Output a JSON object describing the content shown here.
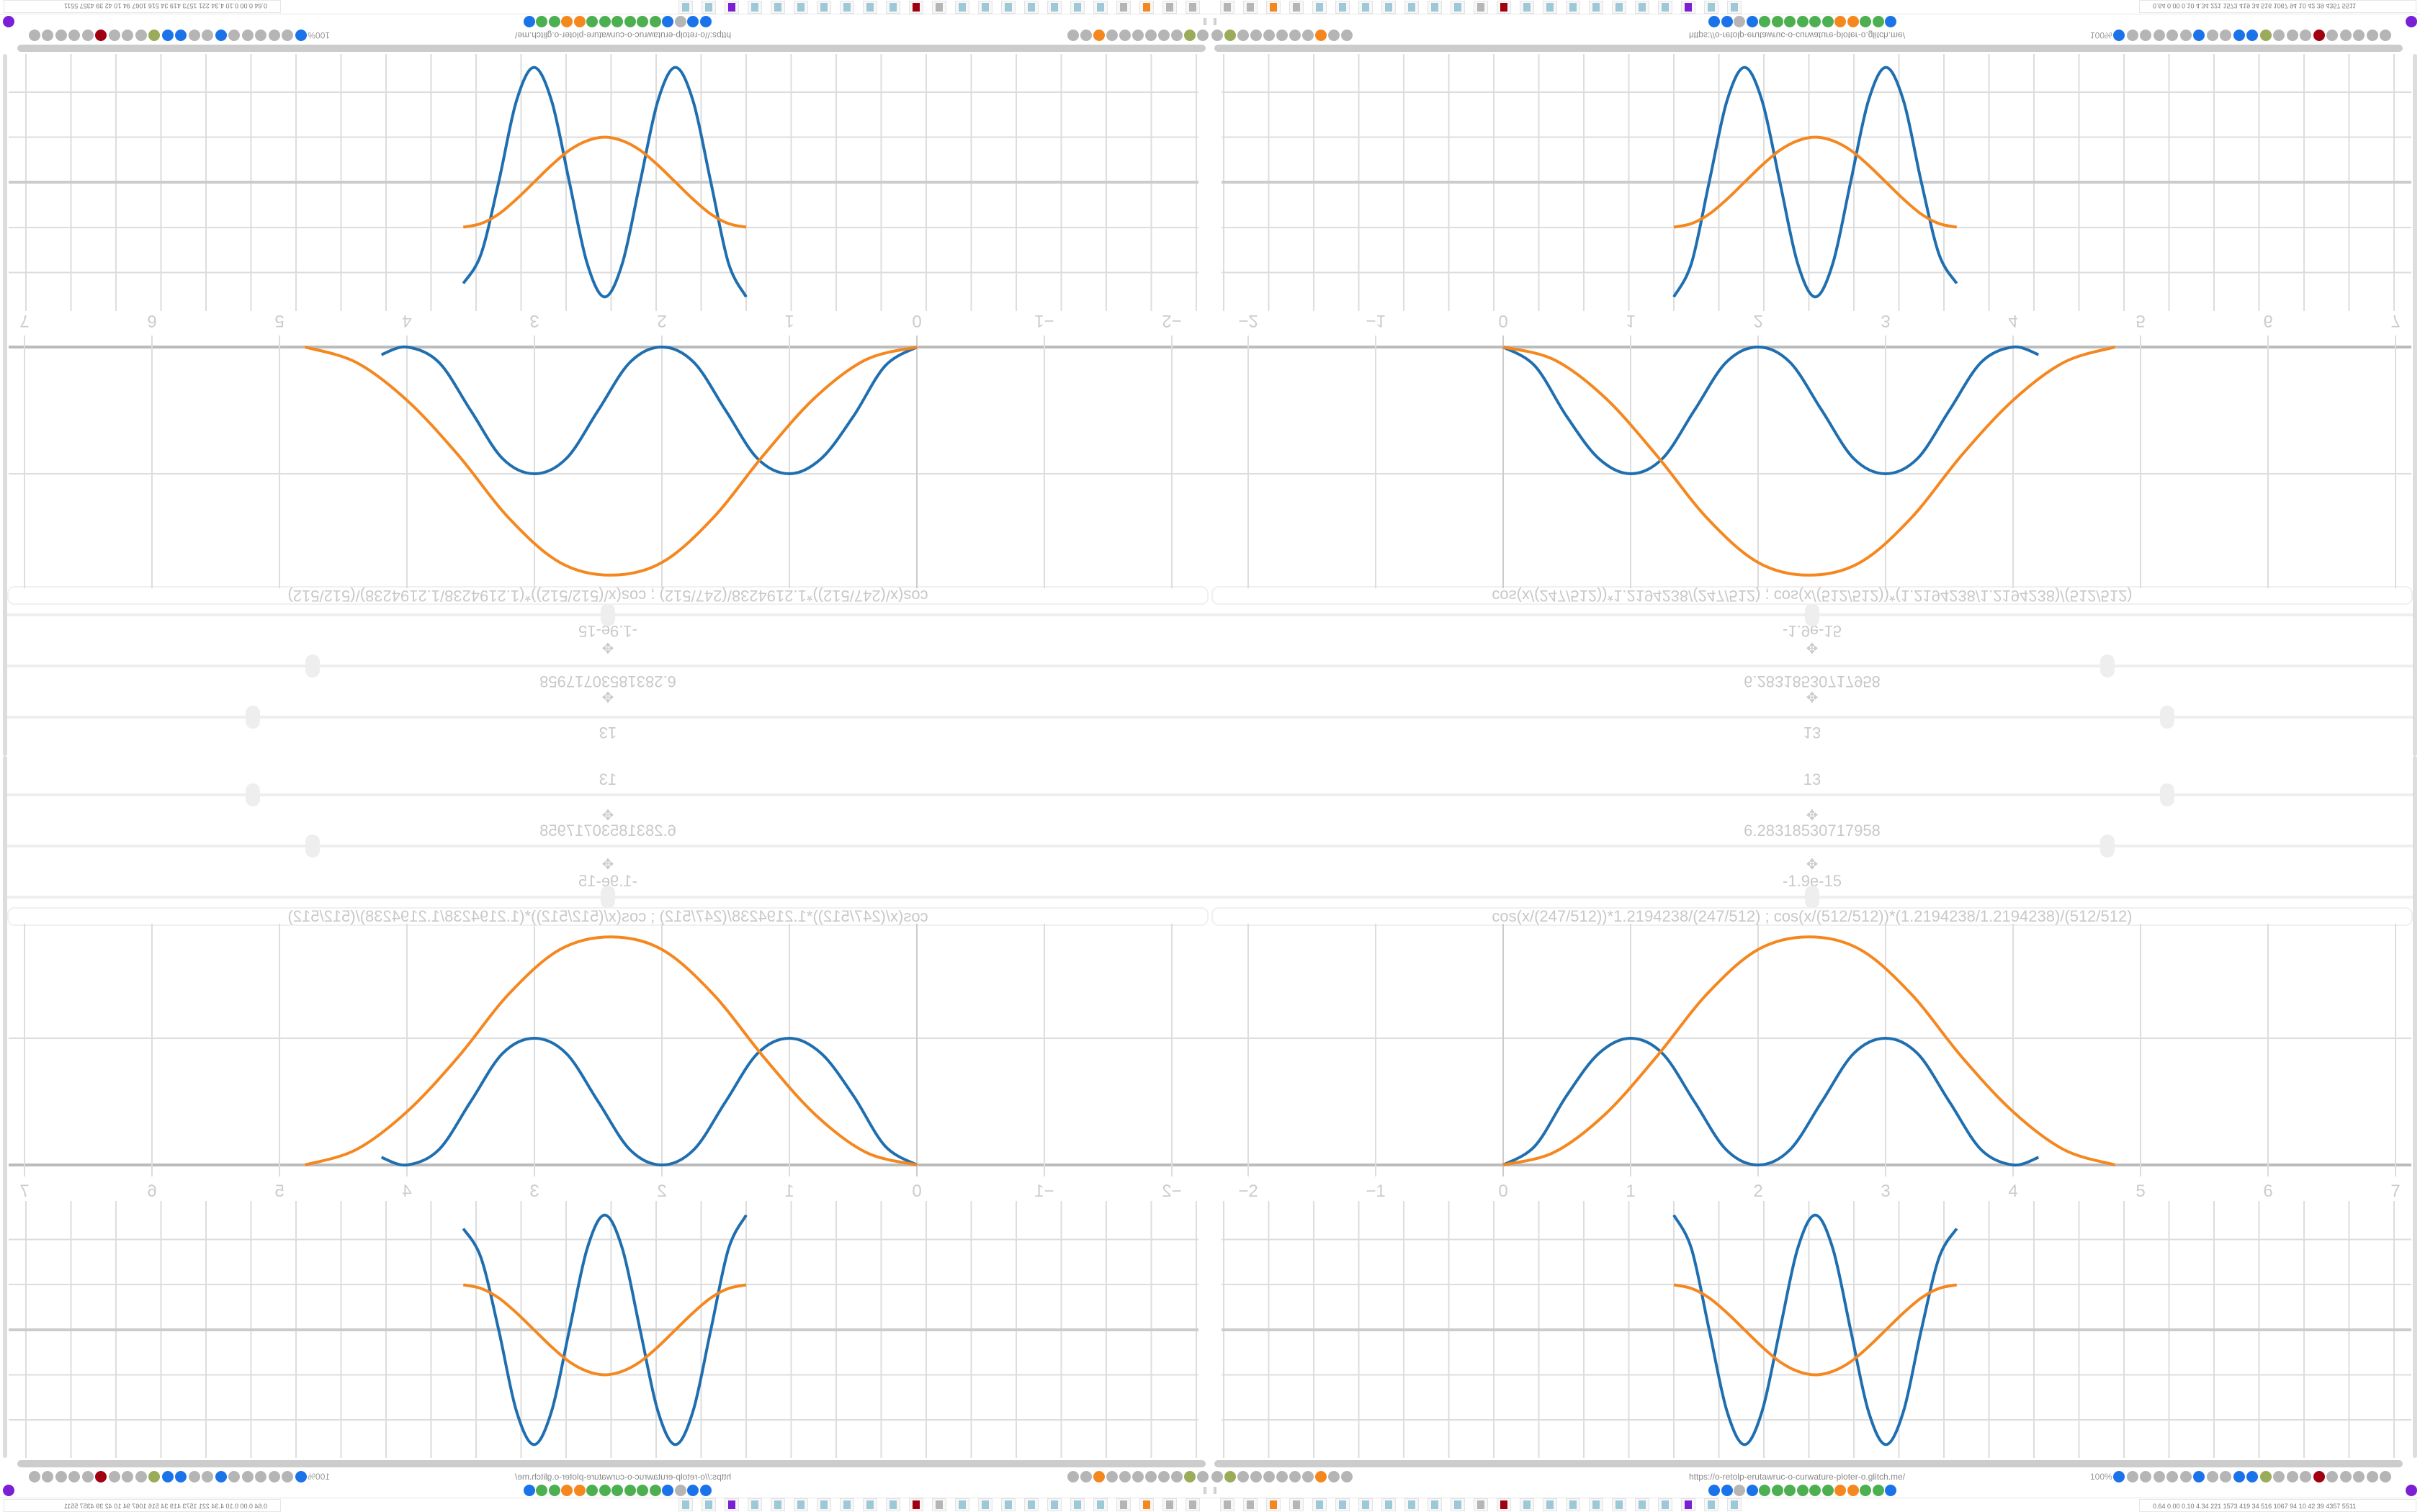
{
  "browser": {
    "url": "https://o-retolp-erutawruc-o-curwature-ploter-o.glitch.me/",
    "zoom": "100%",
    "toolbar_left_icons": [
      "filter-icon",
      "record-icon",
      "globe-icon",
      "globe-icon",
      "refresh-icon",
      "refresh-icon",
      "globe-icon",
      "wrench-icon",
      "firefox-icon",
      "gear-icon",
      "globe-icon"
    ],
    "toolbar_right_icons": [
      "translate-icon",
      "star-icon",
      "forward-icon",
      "reload-icon",
      "download-icon",
      "color-picker-icon",
      "translate-icon",
      "mouse-icon",
      "gear-icon",
      "add-icon",
      "upload-icon",
      "record-icon",
      "trash-icon",
      "share-icon",
      "archive-icon",
      "ublock-icon",
      "shield-icon",
      "globe-icon",
      "extensions-icon",
      "wrench-icon",
      "gear-icon"
    ],
    "bookmark_icons": [
      "mail-icon",
      "drop-icon",
      "globe-icon",
      "cube-icon",
      "leaf-icon",
      "google-icon",
      "google-icon",
      "google-icon",
      "google-icon",
      "google-icon",
      "gear-orange-icon",
      "gear-orange-icon",
      "google-icon",
      "google-icon",
      "cube-icon"
    ],
    "accent_colors": {
      "blue": "#1f6fb0",
      "orange": "#f5871f",
      "purple": "#7a1fd6",
      "red": "#e0101a"
    }
  },
  "taskbar": {
    "apps": [
      "monitor-icon",
      "terminal-icon",
      "firefox-icon",
      "floppy-icon",
      "notepad-icon",
      "notepad-icon",
      "notepad-icon",
      "notepad-icon",
      "notepad-icon",
      "notepad-icon",
      "notepad-icon",
      "inkscape-icon",
      "gear-red-icon",
      "calculator-icon",
      "calculator-icon",
      "calculator-icon",
      "calculator-icon",
      "calculator-icon",
      "calculator-icon",
      "calculator-icon",
      "purple-app-icon",
      "document-icon",
      "document-icon"
    ],
    "status_text": "0.64 0.00 0.10 4.34  221 1573 419  34  516 1067  94  10  42  39  4357 5511"
  },
  "controls": {
    "value_count_a": "13",
    "value_count_b": "13",
    "value_period": "6.28318530717958",
    "value_offset": "-1.9e-15",
    "slider_levels": [
      0.795,
      0.745,
      0.5
    ],
    "expression": "cos(x/(247/512))*1.2194238/(247/512)   ;   cos(x/(512/512))*(1.2194238/1.2194238)/(512/512)"
  },
  "chart_data": [
    {
      "type": "line",
      "xlim": [
        -2.3,
        7.1
      ],
      "ylim": [
        -0.2,
        1.9
      ],
      "grid": true,
      "x_tick_labels": [
        "−2",
        "−1",
        "0",
        "1",
        "2",
        "3",
        "4",
        "5",
        "6",
        "7"
      ],
      "x_ticks": [
        -2,
        -1,
        0,
        1,
        2,
        3,
        4,
        5,
        6,
        7
      ],
      "series": [
        {
          "color": "#1f6fb0",
          "x": [
            0,
            0.25,
            0.5,
            0.75,
            1,
            1.25,
            1.5,
            1.75,
            2,
            2.25,
            2.5,
            2.75,
            3,
            3.25,
            3.5,
            3.75,
            4,
            4.2
          ],
          "y": [
            0,
            0.15,
            0.55,
            0.88,
            1,
            0.88,
            0.5,
            0.12,
            0,
            0.12,
            0.5,
            0.88,
            1,
            0.88,
            0.5,
            0.12,
            0,
            0.06
          ]
        },
        {
          "color": "#f5871f",
          "x": [
            0,
            0.4,
            0.8,
            1.2,
            1.6,
            2.0,
            2.4,
            2.8,
            3.2,
            3.6,
            4.0,
            4.4,
            4.8
          ],
          "y": [
            0,
            0.1,
            0.4,
            0.85,
            1.35,
            1.7,
            1.8,
            1.7,
            1.35,
            0.85,
            0.42,
            0.12,
            0
          ]
        }
      ]
    },
    {
      "type": "line",
      "grid": true,
      "xlim": [
        0,
        6.283
      ],
      "series": [
        {
          "color": "#1f6fb0",
          "x": [
            0,
            0.393,
            0.785,
            1.178,
            1.571,
            1.963,
            2.356,
            2.749,
            3.142,
            3.534,
            3.927,
            4.32,
            4.712,
            5.105,
            5.498,
            5.89,
            6.283
          ],
          "y": [
            2.55,
            1.8,
            0,
            -1.8,
            -2.55,
            -1.8,
            0,
            1.8,
            2.55,
            1.8,
            0,
            -1.8,
            -2.55,
            -1.8,
            0,
            1.6,
            2.25
          ]
        },
        {
          "color": "#f5871f",
          "x": [
            0,
            0.393,
            0.785,
            1.178,
            1.571,
            1.963,
            2.356,
            2.749,
            3.142,
            3.534,
            3.927,
            4.32,
            4.712,
            5.105,
            5.498,
            5.89,
            6.283
          ],
          "y": [
            1,
            0.92,
            0.71,
            0.38,
            0,
            -0.38,
            -0.71,
            -0.92,
            -1,
            -0.92,
            -0.71,
            -0.38,
            0,
            0.38,
            0.71,
            0.92,
            1
          ]
        }
      ]
    }
  ]
}
